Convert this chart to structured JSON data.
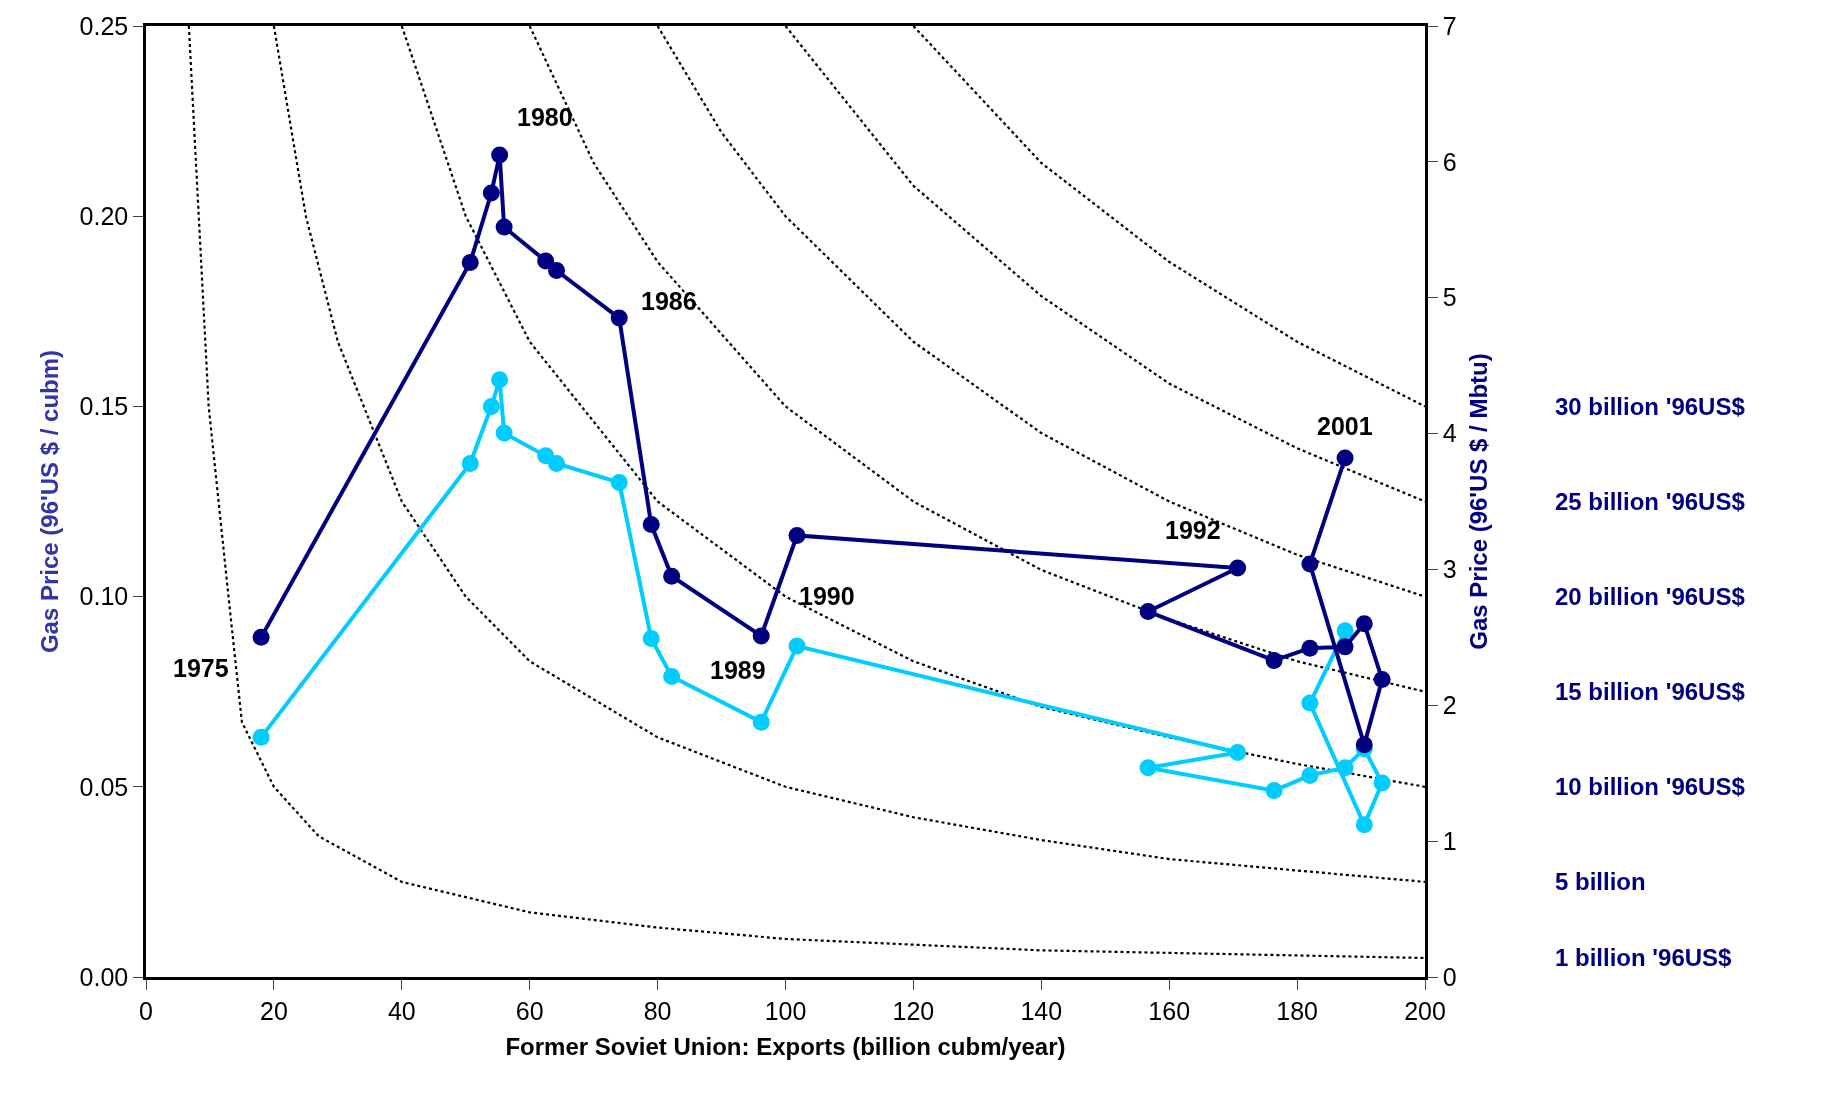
{
  "chart_data": {
    "type": "line",
    "xlabel": "Former Soviet Union: Exports (billion cubm/year)",
    "ylabel": "Gas Price (96'US $ / cubm)",
    "y2label": "Gas Price (96'US $ / Mbtu)",
    "xlim": [
      0,
      200
    ],
    "xticks": [
      0,
      20,
      40,
      60,
      80,
      100,
      120,
      140,
      160,
      180,
      200
    ],
    "ylim": [
      0,
      0.25
    ],
    "yticks": [
      {
        "value": 0,
        "label": "0.00"
      },
      0.05,
      {
        "value": 0.1,
        "label": "0.10"
      },
      0.15,
      {
        "value": 0.2,
        "label": "0.20"
      },
      0.25
    ],
    "y2lim": [
      0,
      7
    ],
    "y2ticks": [
      0,
      1,
      2,
      3,
      4,
      5,
      6,
      7
    ],
    "legend": false,
    "marker": "circle",
    "x": [
      18,
      50.7,
      54,
      55.3,
      56,
      62.5,
      64.2,
      74,
      79,
      82.2,
      96.2,
      101.8,
      170.7,
      156.7,
      176.4,
      182,
      187.5,
      190.5,
      193.3,
      190.5,
      182,
      187.5
    ],
    "series": [
      {
        "color": "#00ccff",
        "values": [
          0.063,
          0.135,
          0.15,
          0.157,
          0.143,
          0.137,
          0.135,
          0.13,
          0.089,
          0.079,
          0.067,
          0.087,
          0.059,
          0.055,
          0.049,
          0.053,
          0.055,
          0.06,
          0.051,
          0.04,
          0.072,
          0.091
        ]
      },
      {
        "color": "#000080",
        "axis": "y2",
        "values": [
          2.5,
          5.26,
          5.77,
          6.05,
          5.52,
          5.27,
          5.2,
          4.85,
          3.33,
          2.95,
          2.51,
          3.25,
          3.01,
          2.69,
          2.33,
          2.42,
          2.43,
          2.6,
          2.19,
          1.71,
          3.04,
          3.82
        ]
      },
      {
        "name": "1 billion '96US$",
        "type": "line",
        "marker": "none",
        "line_style": "dotted",
        "color": "#000000",
        "x": [
          6.7,
          9.8,
          12.9,
          15,
          20,
          27,
          40,
          60,
          80,
          100,
          140,
          200
        ],
        "values": [
          0.25,
          0.15,
          0.1,
          0.067,
          0.05,
          0.037,
          0.025,
          0.017,
          0.013,
          0.01,
          0.007,
          0.005
        ]
      },
      {
        "name": "5 billion",
        "type": "line",
        "marker": "none",
        "line_style": "dotted",
        "color": "#000000",
        "x": [
          20,
          25,
          30,
          40,
          50,
          60,
          80,
          100,
          120,
          140,
          160,
          180,
          200
        ],
        "values": [
          0.25,
          0.2,
          0.167,
          0.125,
          0.1,
          0.083,
          0.063,
          0.05,
          0.042,
          0.036,
          0.031,
          0.028,
          0.025
        ]
      },
      {
        "name": "10 billion '96US$",
        "type": "line",
        "marker": "none",
        "line_style": "dotted",
        "color": "#000000",
        "x": [
          40,
          50,
          60,
          80,
          100,
          120,
          140,
          160,
          180,
          200
        ],
        "values": [
          0.25,
          0.2,
          0.167,
          0.125,
          0.1,
          0.083,
          0.071,
          0.063,
          0.056,
          0.05
        ]
      },
      {
        "name": "15 billion '96US$",
        "type": "line",
        "marker": "none",
        "line_style": "dotted",
        "color": "#000000",
        "x": [
          60,
          70,
          80,
          100,
          120,
          140,
          160,
          180,
          200
        ],
        "values": [
          0.25,
          0.214,
          0.188,
          0.15,
          0.125,
          0.107,
          0.094,
          0.083,
          0.075
        ]
      },
      {
        "name": "20 billion '96US$",
        "type": "line",
        "marker": "none",
        "line_style": "dotted",
        "color": "#000000",
        "x": [
          80,
          90,
          100,
          120,
          140,
          160,
          180,
          200
        ],
        "values": [
          0.25,
          0.222,
          0.2,
          0.167,
          0.143,
          0.125,
          0.111,
          0.1
        ]
      },
      {
        "name": "25 billion '96US$",
        "type": "line",
        "marker": "none",
        "line_style": "dotted",
        "color": "#000000",
        "x": [
          100,
          120,
          140,
          160,
          180,
          200
        ],
        "values": [
          0.25,
          0.208,
          0.179,
          0.156,
          0.139,
          0.125
        ]
      },
      {
        "name": "30 billion '96US$",
        "type": "line",
        "marker": "none",
        "line_style": "dotted",
        "color": "#000000",
        "x": [
          120,
          140,
          160,
          180,
          200
        ],
        "values": [
          0.25,
          0.214,
          0.188,
          0.167,
          0.15
        ]
      }
    ],
    "annotations": [
      {
        "text": "1975",
        "x": 18,
        "y": 0.089
      },
      {
        "text": "1980",
        "x": 55.3,
        "y": 0.216
      },
      {
        "text": "1986",
        "x": 74,
        "y": 0.173
      },
      {
        "text": "1989",
        "x": 96.2,
        "y": 0.09
      },
      {
        "text": "1990",
        "x": 101.8,
        "y": 0.116
      },
      {
        "text": "1992",
        "x": 170.7,
        "y": 0.107
      },
      {
        "text": "2001",
        "x": 187.5,
        "y": 0.137
      }
    ]
  }
}
